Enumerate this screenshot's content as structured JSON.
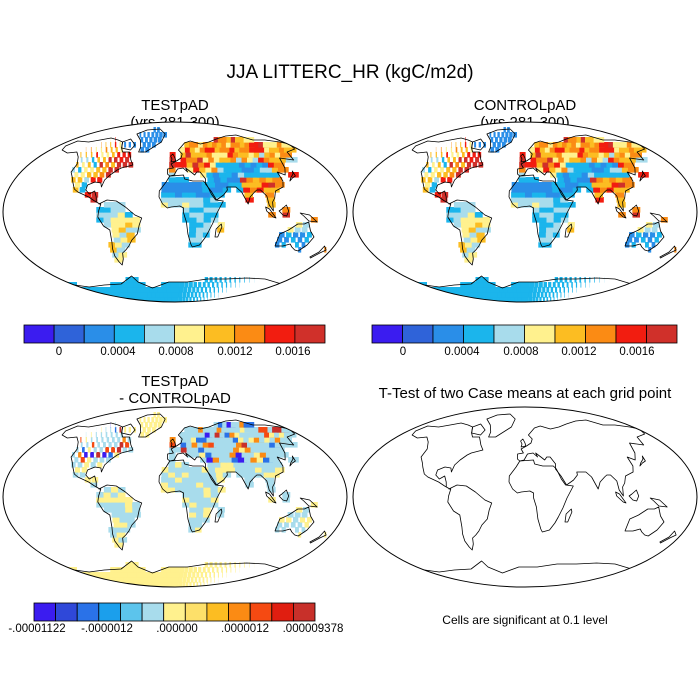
{
  "main_title": "JJA LITTERC_HR (kgC/m2d)",
  "panels": [
    {
      "title": "TESTpAD",
      "subtitle": "(yrs 281-300)"
    },
    {
      "title": "CONTROLpAD",
      "subtitle": "(yrs 281-300)"
    },
    {
      "title": "TESTpAD",
      "subtitle": "- CONTROLpAD"
    },
    {
      "title": "T-Test of two Case means at each grid point"
    }
  ],
  "footnote": "Cells are significant at 0.1 level",
  "colorbars": {
    "absolute": {
      "colors": [
        "#3b1cf0",
        "#2f63d9",
        "#2a8ee8",
        "#1bb5ec",
        "#a8dcec",
        "#fff18e",
        "#fcbd22",
        "#fb8b14",
        "#f21d10",
        "#d0302a"
      ],
      "labels": [
        "0",
        "0.0004",
        "0.0008",
        "0.0012",
        "0.0016"
      ]
    },
    "difference": {
      "colors": [
        "#3b1cf0",
        "#2f48d9",
        "#2a72e8",
        "#1b9fec",
        "#5cc4ec",
        "#a8dcec",
        "#fff18e",
        "#fde06a",
        "#fcbd22",
        "#fb8b14",
        "#f54a12",
        "#e01e10",
        "#c8302a"
      ],
      "labels": [
        "-.00001122",
        "-.0000012",
        ".000000",
        ".0000012",
        ".000009378"
      ]
    }
  },
  "chart_data": [
    {
      "type": "heatmap",
      "title": "TESTpAD",
      "subtitle": "(yrs 281-300)",
      "projection": "robinson",
      "variable": "JJA LITTERC_HR",
      "units": "kgC/m2d",
      "color_levels": [
        0,
        0.0004,
        0.0008,
        0.0012,
        0.0016
      ],
      "range": [
        0,
        0.0018
      ],
      "pattern": "high values (0.0012-0.0018) over eastern North America, Europe and Southeast Asia; low values (~0-0.0004) over Antarctica, Sahara region, Greenland and Australia interior"
    },
    {
      "type": "heatmap",
      "title": "CONTROLpAD",
      "subtitle": "(yrs 281-300)",
      "projection": "robinson",
      "variable": "JJA LITTERC_HR",
      "units": "kgC/m2d",
      "color_levels": [
        0,
        0.0004,
        0.0008,
        0.0012,
        0.0016
      ],
      "range": [
        0,
        0.0018
      ],
      "pattern": "nearly identical to TESTpAD"
    },
    {
      "type": "heatmap",
      "title": "TESTpAD",
      "subtitle": "- CONTROLpAD",
      "projection": "robinson",
      "color_levels": [
        -1.122e-05,
        -1.2e-06,
        0.0,
        1.2e-06,
        9.378e-06
      ],
      "pattern": "mostly near zero (light blue / light yellow); Antarctica slightly positive; scattered larger differences over North America, Europe and Asia"
    },
    {
      "type": "heatmap",
      "title": "T-Test of two Case means at each grid point",
      "projection": "robinson",
      "significance_level": 0.1,
      "significant_cells": 0
    }
  ]
}
